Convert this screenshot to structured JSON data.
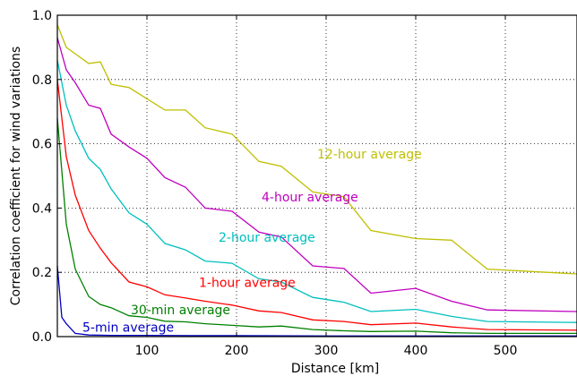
{
  "chart_data": {
    "type": "line",
    "title": "",
    "xlabel": "Distance [km]",
    "ylabel": "Correlation coefficient for wind variations",
    "xlim": [
      0,
      580
    ],
    "ylim": [
      0.0,
      1.0
    ],
    "xticks": [
      100,
      200,
      300,
      400,
      500
    ],
    "yticks": [
      0.0,
      0.2,
      0.4,
      0.6,
      0.8,
      1.0
    ],
    "ytick_labels": [
      "0.0",
      "0.2",
      "0.4",
      "0.6",
      "0.8",
      "1.0"
    ],
    "grid": true,
    "grid_style": "dotted",
    "legend": "inline labels on curves",
    "series": [
      {
        "name": "12-hour average",
        "color": "#bfbf00",
        "x": [
          0,
          10,
          20,
          35,
          48,
          60,
          80,
          100,
          120,
          143,
          165,
          195,
          225,
          250,
          285,
          320,
          350,
          400,
          440,
          480,
          580
        ],
        "y": [
          0.97,
          0.9,
          0.88,
          0.85,
          0.855,
          0.785,
          0.775,
          0.74,
          0.705,
          0.705,
          0.65,
          0.63,
          0.545,
          0.53,
          0.45,
          0.435,
          0.33,
          0.305,
          0.3,
          0.21,
          0.195
        ]
      },
      {
        "name": "4-hour average",
        "color": "#bf00bf",
        "x": [
          0,
          10,
          20,
          35,
          48,
          60,
          80,
          100,
          120,
          143,
          165,
          195,
          225,
          250,
          285,
          320,
          350,
          400,
          440,
          480,
          580
        ],
        "y": [
          0.93,
          0.83,
          0.79,
          0.72,
          0.71,
          0.63,
          0.59,
          0.555,
          0.495,
          0.465,
          0.4,
          0.39,
          0.325,
          0.31,
          0.22,
          0.212,
          0.135,
          0.15,
          0.11,
          0.083,
          0.078
        ]
      },
      {
        "name": "2-hour average",
        "color": "#00bfbf",
        "x": [
          0,
          10,
          20,
          35,
          48,
          60,
          80,
          100,
          120,
          143,
          165,
          195,
          225,
          250,
          285,
          320,
          350,
          400,
          440,
          480,
          580
        ],
        "y": [
          0.86,
          0.72,
          0.64,
          0.555,
          0.52,
          0.46,
          0.385,
          0.35,
          0.29,
          0.27,
          0.235,
          0.228,
          0.18,
          0.17,
          0.122,
          0.107,
          0.078,
          0.085,
          0.063,
          0.047,
          0.044
        ]
      },
      {
        "name": "1-hour average",
        "color": "#ff0000",
        "x": [
          0,
          10,
          20,
          35,
          48,
          60,
          80,
          100,
          120,
          143,
          165,
          195,
          225,
          250,
          285,
          320,
          350,
          400,
          440,
          480,
          580
        ],
        "y": [
          0.8,
          0.56,
          0.44,
          0.33,
          0.275,
          0.23,
          0.17,
          0.155,
          0.13,
          0.12,
          0.11,
          0.098,
          0.08,
          0.075,
          0.052,
          0.047,
          0.037,
          0.042,
          0.03,
          0.022,
          0.02
        ]
      },
      {
        "name": "30-min average",
        "color": "#008000",
        "x": [
          0,
          10,
          20,
          35,
          48,
          60,
          80,
          100,
          120,
          143,
          165,
          195,
          225,
          250,
          285,
          320,
          350,
          400,
          440,
          480,
          580
        ],
        "y": [
          0.68,
          0.35,
          0.21,
          0.125,
          0.1,
          0.09,
          0.065,
          0.06,
          0.048,
          0.046,
          0.04,
          0.035,
          0.03,
          0.033,
          0.022,
          0.018,
          0.016,
          0.017,
          0.012,
          0.01,
          0.01
        ]
      },
      {
        "name": "5-min average",
        "color": "#0000bf",
        "x": [
          0,
          5,
          10,
          20,
          35,
          60,
          100,
          150,
          200,
          300,
          400,
          500,
          580
        ],
        "y": [
          0.22,
          0.06,
          0.04,
          0.01,
          0.005,
          0.004,
          0.004,
          0.003,
          0.003,
          0.002,
          0.002,
          0.002,
          0.002
        ]
      }
    ],
    "labels": [
      {
        "text": "12-hour average",
        "x": 290,
        "y": 0.555
      },
      {
        "text": "4-hour average",
        "x": 228,
        "y": 0.42
      },
      {
        "text": "2-hour average",
        "x": 180,
        "y": 0.295
      },
      {
        "text": "1-hour average",
        "x": 158,
        "y": 0.155
      },
      {
        "text": "30-min average",
        "x": 82,
        "y": 0.07
      },
      {
        "text": "5-min average",
        "x": 28,
        "y": 0.015
      }
    ]
  }
}
